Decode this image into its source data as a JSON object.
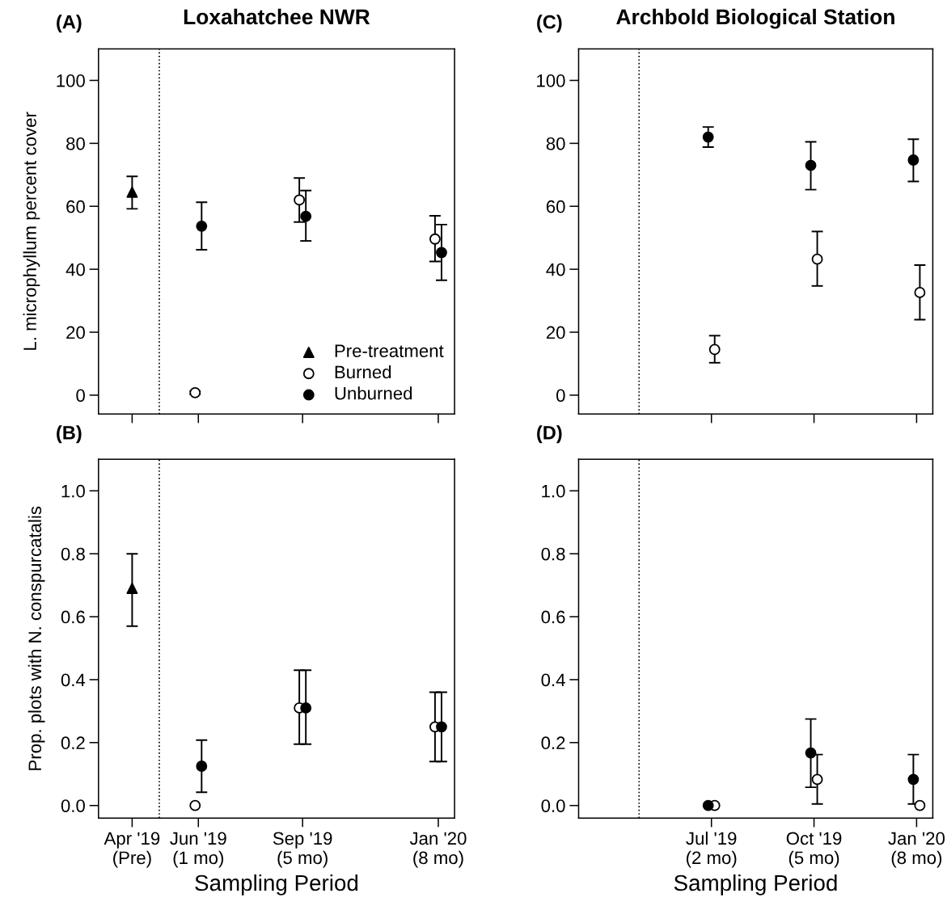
{
  "chart_data": [
    {
      "type": "scatter",
      "title": "Loxahatchee NWR",
      "ylabel": "L. microphyllum percent cover",
      "annotations": [
        "(A)"
      ],
      "xlim": [
        "2019-03-01",
        "2020-01-23"
      ],
      "xticks": [
        {
          "value": "2019-04-01",
          "label": null
        },
        {
          "value": "2019-06-01",
          "label": null
        },
        {
          "value": "2019-09-05",
          "label": null
        },
        {
          "value": "2020-01-08",
          "label": null
        }
      ],
      "ylim": [
        -6,
        110
      ],
      "yticks": [
        0,
        20,
        40,
        60,
        80,
        100
      ],
      "tick_labels": "y",
      "legend": "bottom right",
      "ref_lines": [
        {
          "axis": "x",
          "value": "2019-04-26",
          "line_style": "dotted"
        }
      ],
      "series": [
        {
          "name": "Pre-treatment",
          "color": "#000000",
          "marker": "triangle",
          "x": [
            "2019-04-01"
          ],
          "values": [
            64.5
          ],
          "errors": [
            [
              59.2,
              69.5
            ]
          ]
        },
        {
          "name": "Burned",
          "color": "#ffffff",
          "marker": "circle",
          "x": [
            "2019-05-29",
            "2019-09-02",
            "2020-01-05"
          ],
          "values": [
            0.8,
            62,
            49.6
          ],
          "errors": [
            [
              0.3,
              1.3
            ],
            [
              55,
              69
            ],
            [
              42.5,
              57
            ]
          ]
        },
        {
          "name": "Unburned",
          "color": "#000000",
          "marker": "circle",
          "x": [
            "2019-06-04",
            "2019-09-08",
            "2020-01-11"
          ],
          "values": [
            53.7,
            56.8,
            45.3
          ],
          "errors": [
            [
              46.2,
              61.3
            ],
            [
              49,
              65
            ],
            [
              36.5,
              54.2
            ]
          ]
        }
      ]
    },
    {
      "type": "scatter",
      "ylabel": "Prop. plots with N. conspurcatalis",
      "xlabel": "Sampling Period",
      "annotations": [
        "(B)"
      ],
      "xlim": [
        "2019-03-01",
        "2020-01-23"
      ],
      "xticks": [
        {
          "value": "2019-04-01",
          "label": "Apr '19\n(Pre)"
        },
        {
          "value": "2019-06-01",
          "label": "Jun '19\n(1 mo)"
        },
        {
          "value": "2019-09-05",
          "label": "Sep '19\n(5 mo)"
        },
        {
          "value": "2020-01-08",
          "label": "Jan '20\n(8 mo)"
        }
      ],
      "ylim": [
        -0.04,
        1.1
      ],
      "yticks": [
        {
          "value": 0,
          "label": "0.0"
        },
        {
          "value": 0.2,
          "label": "0.2"
        },
        {
          "value": 0.4,
          "label": "0.4"
        },
        {
          "value": 0.6,
          "label": "0.6"
        },
        {
          "value": 0.8,
          "label": "0.8"
        },
        {
          "value": 1,
          "label": "1.0"
        }
      ],
      "ref_lines": [
        {
          "axis": "x",
          "value": "2019-04-26",
          "line_style": "dotted"
        }
      ],
      "series": [
        {
          "color": "#000000",
          "marker": "triangle",
          "x": [
            "2019-04-01"
          ],
          "values": [
            0.69
          ],
          "errors": [
            [
              0.57,
              0.8
            ]
          ]
        },
        {
          "color": "#ffffff",
          "marker": "circle",
          "x": [
            "2019-05-29",
            "2019-09-02",
            "2020-01-05"
          ],
          "values": [
            0.0,
            0.31,
            0.25
          ],
          "errors": [
            null,
            [
              0.195,
              0.43
            ],
            [
              0.14,
              0.36
            ]
          ]
        },
        {
          "color": "#000000",
          "marker": "circle",
          "x": [
            "2019-06-04",
            "2019-09-08",
            "2020-01-11"
          ],
          "values": [
            0.125,
            0.31,
            0.25
          ],
          "errors": [
            [
              0.042,
              0.208
            ],
            [
              0.195,
              0.43
            ],
            [
              0.14,
              0.36
            ]
          ]
        }
      ]
    },
    {
      "type": "scatter",
      "title": "Archbold Biological Station",
      "annotations": [
        "(C)"
      ],
      "xlim": [
        "2019-03-01",
        "2020-01-23"
      ],
      "xticks": [
        {
          "value": "2019-07-02",
          "label": null
        },
        {
          "value": "2019-10-05",
          "label": null
        },
        {
          "value": "2020-01-08",
          "label": null
        }
      ],
      "ylim": [
        -6,
        110
      ],
      "yticks": [
        0,
        20,
        40,
        60,
        80,
        100
      ],
      "tick_labels": "y",
      "ref_lines": [
        {
          "axis": "x",
          "value": "2019-04-26",
          "line_style": "dotted"
        }
      ],
      "series": [
        {
          "color": "#ffffff",
          "marker": "circle",
          "x": [
            "2019-07-05",
            "2019-10-08",
            "2020-01-11"
          ],
          "values": [
            14.5,
            43.2,
            32.6
          ],
          "errors": [
            [
              10.3,
              18.9
            ],
            [
              34.7,
              52
            ],
            [
              24,
              41.3
            ]
          ]
        },
        {
          "color": "#000000",
          "marker": "circle",
          "x": [
            "2019-06-29",
            "2019-10-02",
            "2020-01-05"
          ],
          "values": [
            82,
            73,
            74.7
          ],
          "errors": [
            [
              78.8,
              85.2
            ],
            [
              65.3,
              80.5
            ],
            [
              67.9,
              81.3
            ]
          ]
        }
      ]
    },
    {
      "type": "scatter",
      "xlabel": "Sampling Period",
      "annotations": [
        "(D)"
      ],
      "xlim": [
        "2019-03-01",
        "2020-01-23"
      ],
      "xticks": [
        {
          "value": "2019-07-02",
          "label": "Jul '19\n(2 mo)"
        },
        {
          "value": "2019-10-05",
          "label": "Oct '19\n(5 mo)"
        },
        {
          "value": "2020-01-08",
          "label": "Jan '20\n(8 mo)"
        }
      ],
      "ylim": [
        -0.04,
        1.1
      ],
      "yticks": [
        {
          "value": 0,
          "label": "0.0"
        },
        {
          "value": 0.2,
          "label": "0.2"
        },
        {
          "value": 0.4,
          "label": "0.4"
        },
        {
          "value": 0.6,
          "label": "0.6"
        },
        {
          "value": 0.8,
          "label": "0.8"
        },
        {
          "value": 1,
          "label": "1.0"
        }
      ],
      "ref_lines": [
        {
          "axis": "x",
          "value": "2019-04-26",
          "line_style": "dotted"
        }
      ],
      "series": [
        {
          "color": "#ffffff",
          "marker": "circle",
          "x": [
            "2019-07-05",
            "2019-10-08",
            "2020-01-11"
          ],
          "values": [
            0.0,
            0.083,
            0.0
          ],
          "errors": [
            null,
            [
              0.005,
              0.162
            ],
            null
          ]
        },
        {
          "color": "#000000",
          "marker": "circle",
          "x": [
            "2019-06-29",
            "2019-10-02",
            "2020-01-05"
          ],
          "values": [
            0.0,
            0.167,
            0.083
          ],
          "errors": [
            null,
            [
              0.058,
              0.275
            ],
            [
              0.005,
              0.162
            ]
          ]
        }
      ]
    }
  ]
}
